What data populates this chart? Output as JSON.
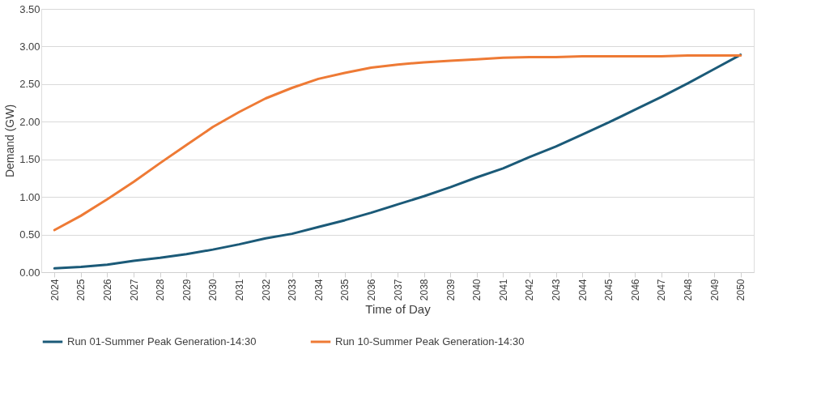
{
  "chart_data": {
    "type": "line",
    "xlabel": "Time of Day",
    "ylabel": "Demand (GW)",
    "categories": [
      "2024",
      "2025",
      "2026",
      "2027",
      "2028",
      "2029",
      "2030",
      "2031",
      "2032",
      "2033",
      "2034",
      "2035",
      "2036",
      "2037",
      "2038",
      "2039",
      "2040",
      "2041",
      "2042",
      "2043",
      "2044",
      "2045",
      "2046",
      "2047",
      "2048",
      "2049",
      "2050"
    ],
    "series": [
      {
        "name": "Run 01-Summer Peak Generation-14:30",
        "color": "#1b5a78",
        "values": [
          0.05,
          0.07,
          0.1,
          0.15,
          0.19,
          0.24,
          0.3,
          0.37,
          0.45,
          0.51,
          0.6,
          0.69,
          0.79,
          0.9,
          1.01,
          1.13,
          1.26,
          1.38,
          1.53,
          1.67,
          1.83,
          1.99,
          2.16,
          2.33,
          2.51,
          2.7,
          2.89
        ]
      },
      {
        "name": "Run 10-Summer Peak Generation-14:30",
        "color": "#ee7a35",
        "values": [
          0.56,
          0.75,
          0.97,
          1.2,
          1.45,
          1.69,
          1.93,
          2.13,
          2.31,
          2.45,
          2.57,
          2.65,
          2.72,
          2.76,
          2.79,
          2.81,
          2.83,
          2.85,
          2.86,
          2.86,
          2.87,
          2.87,
          2.87,
          2.87,
          2.88,
          2.88,
          2.88
        ]
      }
    ],
    "ylim": [
      0,
      3.5
    ],
    "yticks": [
      {
        "value": 0,
        "label": "0.00"
      },
      {
        "value": 0.5,
        "label": "0.50"
      },
      {
        "value": 1,
        "label": "1.00"
      },
      {
        "value": 1.5,
        "label": "1.50"
      },
      {
        "value": 2,
        "label": "2.00"
      },
      {
        "value": 2.5,
        "label": "2.50"
      },
      {
        "value": 3,
        "label": "3.00"
      },
      {
        "value": 3.5,
        "label": "3.50"
      }
    ],
    "grid": "y",
    "legend": "bottom",
    "marker": "none",
    "line_style": "solid"
  }
}
